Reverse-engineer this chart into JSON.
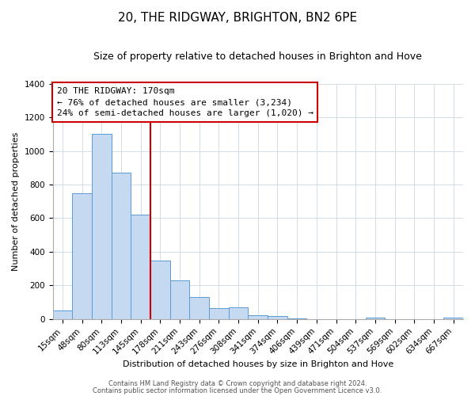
{
  "title": "20, THE RIDGWAY, BRIGHTON, BN2 6PE",
  "subtitle": "Size of property relative to detached houses in Brighton and Hove",
  "xlabel": "Distribution of detached houses by size in Brighton and Hove",
  "ylabel": "Number of detached properties",
  "bar_labels": [
    "15sqm",
    "48sqm",
    "80sqm",
    "113sqm",
    "145sqm",
    "178sqm",
    "211sqm",
    "243sqm",
    "276sqm",
    "308sqm",
    "341sqm",
    "374sqm",
    "406sqm",
    "439sqm",
    "471sqm",
    "504sqm",
    "537sqm",
    "569sqm",
    "602sqm",
    "634sqm",
    "667sqm"
  ],
  "bar_values": [
    50,
    750,
    1100,
    870,
    620,
    350,
    230,
    130,
    65,
    70,
    25,
    18,
    5,
    0,
    0,
    0,
    10,
    0,
    0,
    0,
    10
  ],
  "bar_color": "#c5d9f1",
  "bar_edge_color": "#5b9bd5",
  "vline_x_index": 5,
  "vline_color": "#cc0000",
  "annotation_line1": "20 THE RIDGWAY: 170sqm",
  "annotation_line2": "← 76% of detached houses are smaller (3,234)",
  "annotation_line3": "24% of semi-detached houses are larger (1,020) →",
  "annotation_box_color": "#ffffff",
  "annotation_box_edge": "#cc0000",
  "ylim": [
    0,
    1400
  ],
  "yticks": [
    0,
    200,
    400,
    600,
    800,
    1000,
    1200,
    1400
  ],
  "footer1": "Contains HM Land Registry data © Crown copyright and database right 2024.",
  "footer2": "Contains public sector information licensed under the Open Government Licence v3.0.",
  "background_color": "#ffffff",
  "grid_color": "#d0dce8",
  "title_fontsize": 11,
  "subtitle_fontsize": 9,
  "axis_label_fontsize": 8,
  "tick_fontsize": 7.5,
  "annotation_fontsize": 8,
  "footer_fontsize": 6
}
